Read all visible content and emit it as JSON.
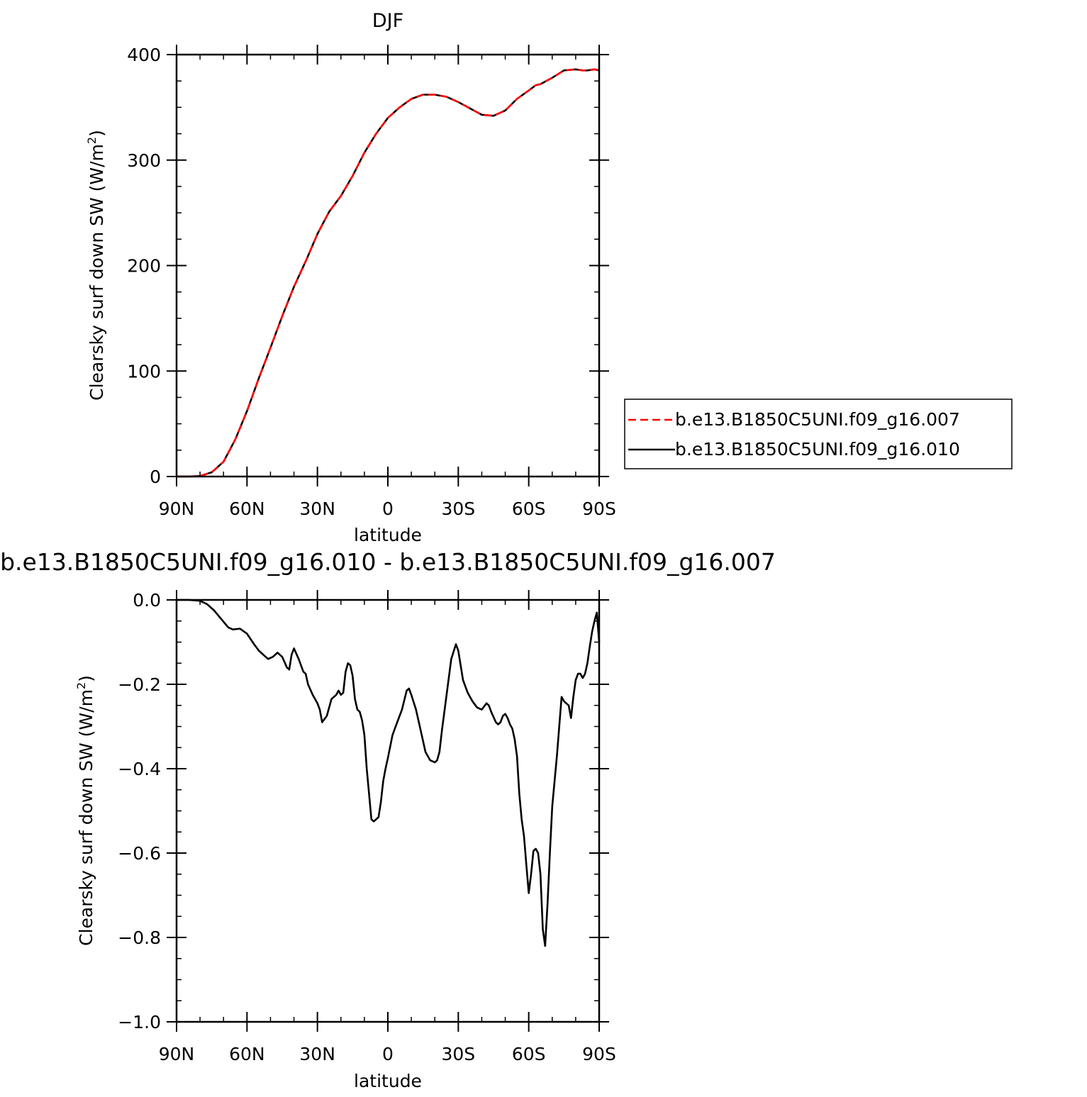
{
  "chart_data": [
    {
      "type": "line",
      "title": "DJF",
      "xlabel": "latitude",
      "ylabel": "Clearsky surf down SW (W/m",
      "ylabel_sup": "2",
      "ylabel_close": ")",
      "xlim": [
        90,
        -90
      ],
      "ylim": [
        0,
        400
      ],
      "x_ticks": [
        90,
        60,
        30,
        0,
        -30,
        -60,
        -90
      ],
      "x_tick_labels": [
        "90N",
        "60N",
        "30N",
        "0",
        "30S",
        "60S",
        "90S"
      ],
      "y_ticks": [
        0,
        100,
        200,
        300,
        400
      ],
      "y_tick_labels": [
        "0",
        "100",
        "200",
        "300",
        "400"
      ],
      "series": [
        {
          "name": "b.e13.B1850C5UNI.f09_g16.007",
          "color": "#ff0000",
          "dash": "dashed",
          "x": [
            90,
            85,
            80,
            75,
            70,
            65,
            60,
            55,
            50,
            45,
            40,
            35,
            30,
            25,
            20,
            15,
            10,
            5,
            0,
            -5,
            -10,
            -15,
            -20,
            -25,
            -30,
            -35,
            -40,
            -45,
            -50,
            -55,
            -60,
            -63,
            -65,
            -70,
            -75,
            -80,
            -83,
            -85,
            -88,
            -90
          ],
          "y": [
            0,
            0,
            0.5,
            4,
            14,
            35,
            62,
            93,
            122,
            152,
            180,
            204,
            230,
            251,
            266,
            285,
            307,
            325,
            340,
            350,
            358,
            362,
            362,
            360,
            355,
            349,
            343,
            342,
            347,
            358,
            366,
            371,
            372,
            378,
            385,
            386,
            385,
            385,
            386,
            385
          ]
        },
        {
          "name": "b.e13.B1850C5UNI.f09_g16.010",
          "color": "#000000",
          "dash": "solid",
          "x": [
            90,
            85,
            80,
            75,
            70,
            65,
            60,
            55,
            50,
            45,
            40,
            35,
            30,
            25,
            20,
            15,
            10,
            5,
            0,
            -5,
            -10,
            -15,
            -20,
            -25,
            -30,
            -35,
            -40,
            -45,
            -50,
            -55,
            -60,
            -63,
            -65,
            -70,
            -75,
            -80,
            -83,
            -85,
            -88,
            -90
          ],
          "y": [
            0,
            0,
            0.5,
            4,
            14,
            35,
            62,
            93,
            122,
            152,
            180,
            204,
            230,
            251,
            266,
            285,
            307,
            325,
            340,
            350,
            358,
            362,
            362,
            360,
            355,
            349,
            343,
            342,
            347,
            358,
            366,
            371,
            372,
            378,
            385,
            386,
            385,
            385,
            386,
            385
          ]
        }
      ],
      "legend": {
        "placement": "right",
        "entries": [
          "b.e13.B1850C5UNI.f09_g16.007",
          "b.e13.B1850C5UNI.f09_g16.010"
        ]
      }
    },
    {
      "type": "line",
      "title": "b.e13.B1850C5UNI.f09_g16.010 - b.e13.B1850C5UNI.f09_g16.007",
      "xlabel": "latitude",
      "ylabel": "Clearsky surf down SW (W/m",
      "ylabel_sup": "2",
      "ylabel_close": ")",
      "xlim": [
        90,
        -90
      ],
      "ylim": [
        -1.0,
        0.0
      ],
      "x_ticks": [
        90,
        60,
        30,
        0,
        -30,
        -60,
        -90
      ],
      "x_tick_labels": [
        "90N",
        "60N",
        "30N",
        "0",
        "30S",
        "60S",
        "90S"
      ],
      "y_ticks": [
        0.0,
        -0.2,
        -0.4,
        -0.6,
        -0.8,
        -1.0
      ],
      "y_tick_labels": [
        "0.0",
        "−0.2",
        "−0.4",
        "−0.6",
        "−0.8",
        "−1.0"
      ],
      "series": [
        {
          "name": "b.e13.B1850C5UNI.f09_g16.010 - b.e13.B1850C5UNI.f09_g16.007",
          "color": "#000000",
          "dash": "solid",
          "x": [
            90,
            85,
            80,
            77,
            74,
            71,
            68,
            66,
            63,
            60,
            57,
            55,
            53,
            51,
            49,
            47,
            45,
            43,
            42,
            41,
            40,
            38,
            36,
            35,
            34,
            32,
            30,
            29,
            28,
            26,
            24,
            22,
            21,
            20,
            19,
            18,
            17,
            16,
            15,
            14,
            13,
            12,
            11,
            10,
            9,
            7,
            6,
            5,
            4,
            3,
            2,
            1,
            0,
            -2,
            -4,
            -6,
            -8,
            -9,
            -10,
            -12,
            -14,
            -16,
            -18,
            -20,
            -21,
            -22,
            -23,
            -25,
            -27,
            -29,
            -30,
            -32,
            -34,
            -36,
            -38,
            -40,
            -42,
            -43,
            -44,
            -46,
            -47,
            -48,
            -49,
            -50,
            -51,
            -52,
            -53,
            -54,
            -55,
            -56,
            -57,
            -58,
            -59,
            -60,
            -61,
            -62,
            -63,
            -64,
            -65,
            -66,
            -67,
            -68,
            -69,
            -70,
            -71,
            -72,
            -73,
            -74,
            -75,
            -76,
            -77,
            -78,
            -79,
            -80,
            -81,
            -82,
            -83,
            -84,
            -85,
            -86,
            -87,
            -88,
            -89,
            -90
          ],
          "y": [
            0,
            0,
            -0.002,
            -0.01,
            -0.025,
            -0.045,
            -0.065,
            -0.07,
            -0.068,
            -0.08,
            -0.105,
            -0.12,
            -0.13,
            -0.14,
            -0.135,
            -0.125,
            -0.135,
            -0.16,
            -0.165,
            -0.13,
            -0.115,
            -0.14,
            -0.17,
            -0.175,
            -0.2,
            -0.225,
            -0.245,
            -0.26,
            -0.29,
            -0.275,
            -0.235,
            -0.225,
            -0.215,
            -0.225,
            -0.22,
            -0.17,
            -0.15,
            -0.155,
            -0.18,
            -0.235,
            -0.26,
            -0.265,
            -0.285,
            -0.32,
            -0.4,
            -0.52,
            -0.525,
            -0.52,
            -0.515,
            -0.48,
            -0.43,
            -0.4,
            -0.375,
            -0.32,
            -0.29,
            -0.26,
            -0.215,
            -0.21,
            -0.225,
            -0.26,
            -0.31,
            -0.36,
            -0.38,
            -0.385,
            -0.38,
            -0.36,
            -0.31,
            -0.225,
            -0.14,
            -0.105,
            -0.12,
            -0.19,
            -0.22,
            -0.24,
            -0.255,
            -0.26,
            -0.245,
            -0.25,
            -0.265,
            -0.29,
            -0.295,
            -0.29,
            -0.275,
            -0.27,
            -0.28,
            -0.295,
            -0.305,
            -0.33,
            -0.37,
            -0.46,
            -0.52,
            -0.56,
            -0.63,
            -0.695,
            -0.65,
            -0.595,
            -0.59,
            -0.6,
            -0.65,
            -0.78,
            -0.82,
            -0.72,
            -0.6,
            -0.49,
            -0.43,
            -0.37,
            -0.3,
            -0.23,
            -0.24,
            -0.245,
            -0.25,
            -0.28,
            -0.23,
            -0.19,
            -0.175,
            -0.175,
            -0.185,
            -0.175,
            -0.15,
            -0.11,
            -0.075,
            -0.05,
            -0.03,
            -0.1
          ]
        }
      ]
    }
  ]
}
